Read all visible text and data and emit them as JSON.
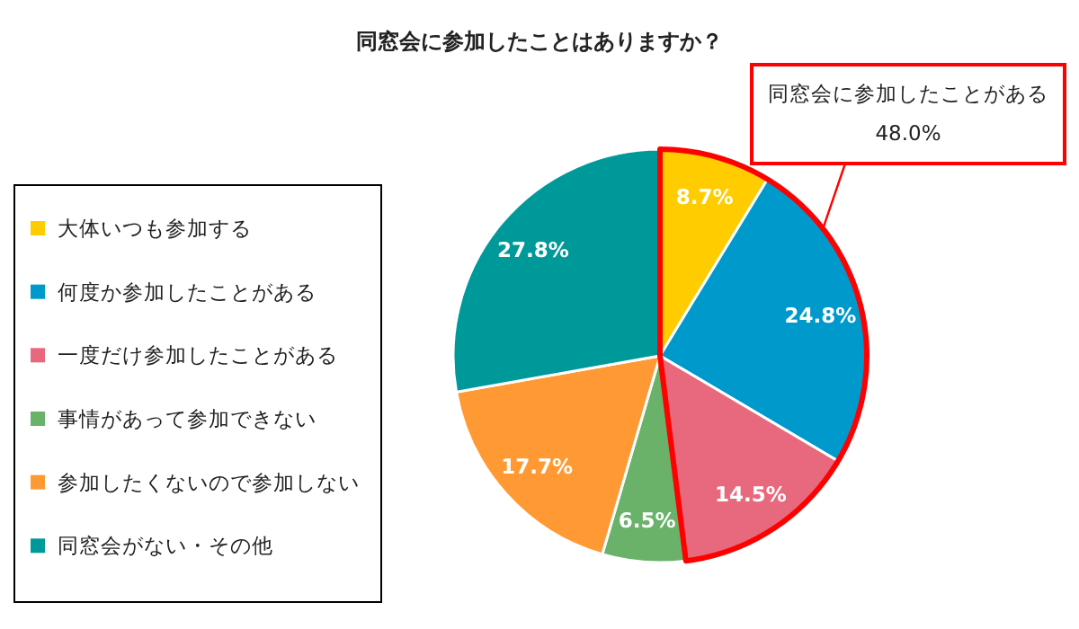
{
  "chart_data": {
    "type": "pie",
    "title": "同窓会に参加したことはありますか？",
    "categories": [
      "大体いつも参加する",
      "何度か参加したことがある",
      "一度だけ参加したことがある",
      "事情があって参加できない",
      "参加したくないので参加しない",
      "同窓会がない・その他"
    ],
    "values": [
      8.7,
      24.8,
      14.5,
      6.5,
      17.7,
      27.8
    ],
    "colors": [
      "#ffcc00",
      "#0099cc",
      "#e8697d",
      "#6ab26a",
      "#ff9933",
      "#009999"
    ],
    "value_labels": [
      "8.7%",
      "24.8%",
      "14.5%",
      "6.5%",
      "17.7%",
      "27.8%"
    ],
    "legend": "left",
    "annotations": [
      "同窓会に参加したことがある",
      "48.0%"
    ]
  }
}
